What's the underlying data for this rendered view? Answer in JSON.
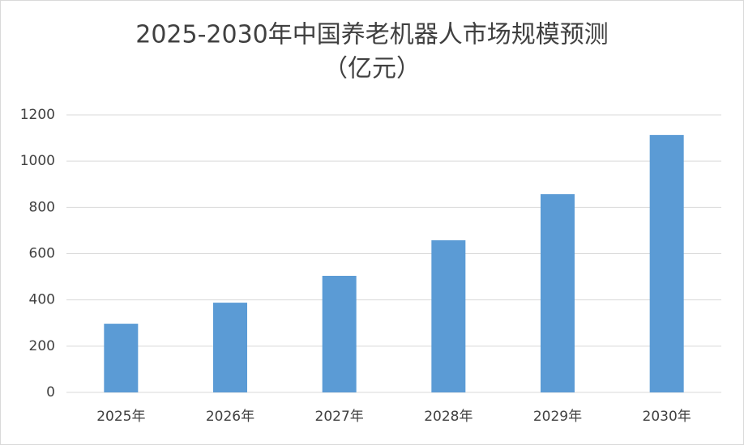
{
  "chart_data": {
    "type": "bar",
    "title": "2025-2030年中国养老机器人市场规模预测",
    "subtitle": "（亿元）",
    "categories": [
      "2025年",
      "2026年",
      "2027年",
      "2028年",
      "2029年",
      "2030年"
    ],
    "values": [
      297,
      388,
      504,
      658,
      857,
      1113
    ],
    "color": "#5b9bd5",
    "ylim": [
      0,
      1200
    ],
    "yticks": [
      0,
      200,
      400,
      600,
      800,
      1000,
      1200
    ],
    "grid": true
  }
}
